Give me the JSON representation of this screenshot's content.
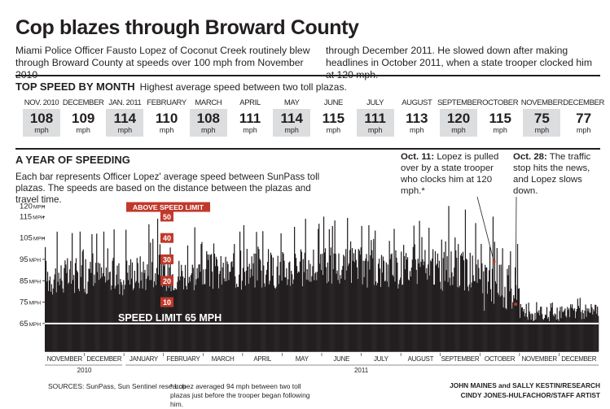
{
  "headline": "Cop blazes through Broward County",
  "intro_left": "Miami Police Officer Fausto Lopez of Coconut Creek routinely blew through Broward County at speeds over 100 mph from November 2010",
  "intro_right": "through December 2011. He slowed down after making headlines in October 2011, when a state trooper clocked him at 120 mph.",
  "top_speed": {
    "title": "TOP SPEED BY MONTH",
    "subtitle": "Highest average speed between two toll plazas.",
    "unit": "mph",
    "months": [
      {
        "name": "NOV. 2010",
        "value": "108",
        "shaded": true
      },
      {
        "name": "DECEMBER",
        "value": "109",
        "shaded": false
      },
      {
        "name": "JAN. 2011",
        "value": "114",
        "shaded": true
      },
      {
        "name": "FEBRUARY",
        "value": "110",
        "shaded": false
      },
      {
        "name": "MARCH",
        "value": "108",
        "shaded": true
      },
      {
        "name": "APRIL",
        "value": "111",
        "shaded": false
      },
      {
        "name": "MAY",
        "value": "114",
        "shaded": true
      },
      {
        "name": "JUNE",
        "value": "115",
        "shaded": false
      },
      {
        "name": "JULY",
        "value": "111",
        "shaded": true
      },
      {
        "name": "AUGUST",
        "value": "113",
        "shaded": false
      },
      {
        "name": "SEPTEMBER",
        "value": "120",
        "shaded": true
      },
      {
        "name": "OCTOBER",
        "value": "115",
        "shaded": false
      },
      {
        "name": "NOVEMBER",
        "value": "75",
        "shaded": true
      },
      {
        "name": "DECEMBER",
        "value": "77",
        "shaded": false
      }
    ]
  },
  "year_section": {
    "title": "A YEAR OF SPEEDING",
    "description": "Each bar represents Officer Lopez' average speed between SunPass toll plazas. The speeds are based on the distance between the plazas and travel time."
  },
  "annotations": {
    "oct11_date": "Oct. 11:",
    "oct11_text": "Lopez is pulled over by a state trooper who clocks him at 120 mph.*",
    "oct28_date": "Oct. 28:",
    "oct28_text": "The traffic stop hits the news, and Lopez slows down."
  },
  "footer": {
    "sources": "SOURCES: SunPass, Sun Sentinel research",
    "footnote": "* Lopez averaged 94 mph between two toll plazas just before the trooper began following him.",
    "credit_line1": "JOHN MAINES and SALLY KESTIN/RESEARCH",
    "credit_line2": "CINDY JONES-HULFACHOR/STAFF ARTIST"
  },
  "colors": {
    "bars": "#231f20",
    "accent_red": "#c0392b",
    "shade": "#dcdddf",
    "speed_line": "#ffffff"
  },
  "chart_data": {
    "type": "bar",
    "xlabel": "",
    "ylabel": "",
    "y_unit": "MPH",
    "yticks": [
      65,
      75,
      85,
      95,
      105,
      115,
      120
    ],
    "ylim": [
      52,
      122
    ],
    "x_month_labels": [
      "NOVEMBER",
      "DECEMBER",
      "JANUARY",
      "FEBRUARY",
      "MARCH",
      "APRIL",
      "MAY",
      "JUNE",
      "JULY",
      "AUGUST",
      "SEPTEMBER",
      "OCTOBER",
      "NOVEMBER",
      "DECEMBER"
    ],
    "x_year_labels": [
      "2010",
      "2011"
    ],
    "speed_limit": 65,
    "speed_limit_label": "SPEED LIMIT 65 MPH",
    "above_limit_label": "ABOVE SPEED LIMIT",
    "above_limit_marks": [
      50,
      40,
      30,
      20,
      10
    ],
    "series": [
      {
        "period": "Nov 2010",
        "typical_min": 78,
        "typical_max": 96,
        "peak": 108
      },
      {
        "period": "Dec 2010",
        "typical_min": 78,
        "typical_max": 96,
        "peak": 109
      },
      {
        "period": "Jan 2011",
        "typical_min": 80,
        "typical_max": 98,
        "peak": 114
      },
      {
        "period": "Feb 2011",
        "typical_min": 80,
        "typical_max": 97,
        "peak": 110
      },
      {
        "period": "Mar 2011",
        "typical_min": 80,
        "typical_max": 98,
        "peak": 108
      },
      {
        "period": "Apr 2011",
        "typical_min": 81,
        "typical_max": 99,
        "peak": 111
      },
      {
        "period": "May 2011",
        "typical_min": 81,
        "typical_max": 100,
        "peak": 114
      },
      {
        "period": "Jun 2011",
        "typical_min": 82,
        "typical_max": 101,
        "peak": 115
      },
      {
        "period": "Jul 2011",
        "typical_min": 81,
        "typical_max": 100,
        "peak": 111
      },
      {
        "period": "Aug 2011",
        "typical_min": 82,
        "typical_max": 100,
        "peak": 113
      },
      {
        "period": "Sep 2011",
        "typical_min": 80,
        "typical_max": 99,
        "peak": 120
      },
      {
        "period": "Oct 2011",
        "typical_min": 70,
        "typical_max": 94,
        "peak": 115
      },
      {
        "period": "Nov 2011",
        "typical_min": 66,
        "typical_max": 73,
        "peak": 75
      },
      {
        "period": "Dec 2011",
        "typical_min": 67,
        "typical_max": 74,
        "peak": 77
      }
    ],
    "markers": [
      {
        "label": "Oct. 11",
        "speed": 94
      },
      {
        "label": "Oct. 28",
        "speed": 74
      }
    ]
  }
}
